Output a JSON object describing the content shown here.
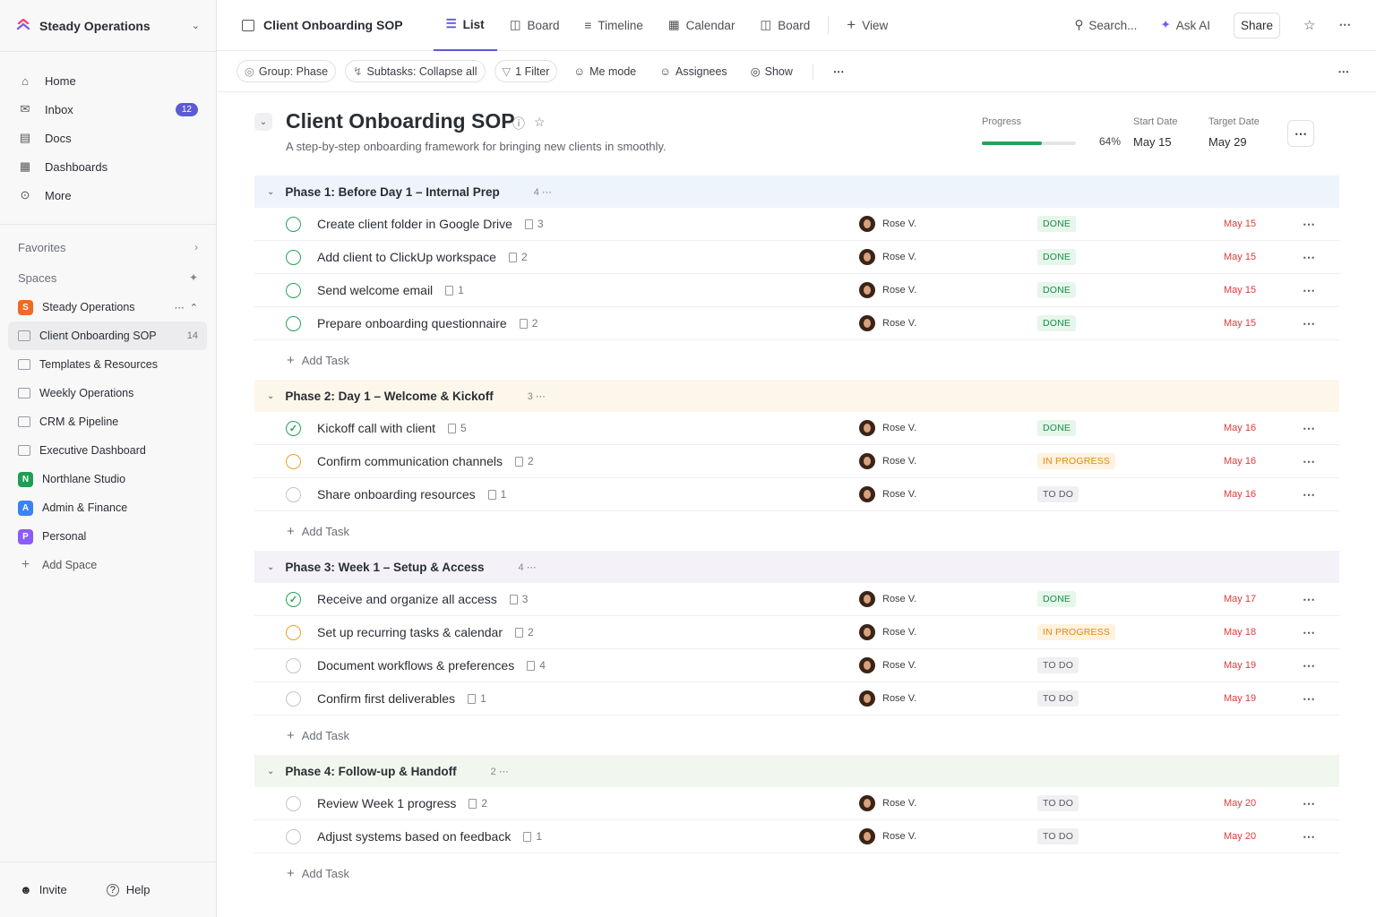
{
  "sidebar": {
    "workspace": "Steady Operations",
    "nav": [
      {
        "label": "Home",
        "icon": "home-icon"
      },
      {
        "label": "Inbox",
        "icon": "inbox-icon",
        "badge": "12"
      },
      {
        "label": "Docs",
        "icon": "docs-icon"
      },
      {
        "label": "Dashboards",
        "icon": "dashboards-icon"
      },
      {
        "label": "More",
        "icon": "more-icon"
      }
    ],
    "favorites": "Favorites",
    "spaces": "Spaces",
    "space_items": [
      {
        "label": "Steady Operations",
        "avatar": "S",
        "color": "#f06a25"
      },
      {
        "label": "Client Onboarding SOP",
        "count": "14",
        "folder": true,
        "active": true
      },
      {
        "label": "Templates & Resources",
        "folder": true
      },
      {
        "label": "Weekly Operations",
        "folder": true
      },
      {
        "label": "CRM & Pipeline",
        "folder": true
      },
      {
        "label": "Executive Dashboard",
        "folder": true
      },
      {
        "label": "Northlane Studio",
        "avatar": "N",
        "color": "#1f9d55"
      },
      {
        "label": "Admin & Finance",
        "avatar": "A",
        "color": "#3b82f6"
      },
      {
        "label": "Personal",
        "avatar": "P",
        "color": "#8b5cf6"
      }
    ],
    "add_space": "Add Space",
    "invite": "Invite",
    "help": "Help"
  },
  "header": {
    "doc_title": "Client Onboarding SOP",
    "tabs": [
      "List",
      "Board",
      "Timeline",
      "Calendar",
      "Board"
    ],
    "view": "View",
    "search": "Search...",
    "ask_ai": "Ask AI",
    "share": "Share"
  },
  "toolbar": {
    "group": "Group: Phase",
    "subtasks": "Subtasks: Collapse all",
    "filter": "1 Filter",
    "me_mode": "Me mode",
    "assignees": "Assignees",
    "show": "Show"
  },
  "page": {
    "title": "Client Onboarding SOP",
    "subtitle": "A step-by-step onboarding framework for bringing new clients in smoothly.",
    "progress_label": "Progress",
    "progress_value": 64,
    "progress_text": "64%",
    "start_label": "Start Date",
    "start": "May 15",
    "target_label": "Target Date",
    "target": "May 29"
  },
  "add_task": "Add Task",
  "phases": [
    {
      "name": "Phase 1: Before Day 1 – Internal Prep",
      "count": "4",
      "bg": "#eef4fb",
      "tasks": [
        {
          "name": "Create client folder in Google Drive",
          "sub": "3",
          "who": "Rose V.",
          "status": "DONE",
          "due": "May 15",
          "circle": "done"
        },
        {
          "name": "Add client to ClickUp workspace",
          "sub": "2",
          "who": "Rose V.",
          "status": "DONE",
          "due": "May 15",
          "circle": "done"
        },
        {
          "name": "Send welcome email",
          "sub": "1",
          "who": "Rose V.",
          "status": "DONE",
          "due": "May 15",
          "circle": "done"
        },
        {
          "name": "Prepare onboarding questionnaire",
          "sub": "2",
          "who": "Rose V.",
          "status": "DONE",
          "due": "May 15",
          "circle": "done"
        }
      ]
    },
    {
      "name": "Phase 2: Day 1 – Welcome & Kickoff",
      "count": "3",
      "bg": "#fdf6ea",
      "tasks": [
        {
          "name": "Kickoff call with client",
          "sub": "5",
          "who": "Rose V.",
          "status": "DONE",
          "due": "May 16",
          "circle": "check"
        },
        {
          "name": "Confirm communication channels",
          "sub": "2",
          "who": "Rose V.",
          "status": "IN PROGRESS",
          "due": "May 16",
          "circle": "prog"
        },
        {
          "name": "Share onboarding resources",
          "sub": "1",
          "who": "Rose V.",
          "status": "TO DO",
          "due": "May 16",
          "circle": "todo"
        }
      ]
    },
    {
      "name": "Phase 3: Week 1 – Setup & Access",
      "count": "4",
      "bg": "#f5f1f9",
      "tasks": [
        {
          "name": "Receive and organize all access",
          "sub": "3",
          "who": "Rose V.",
          "status": "DONE",
          "due": "May 17",
          "circle": "check"
        },
        {
          "name": "Set up recurring tasks & calendar",
          "sub": "2",
          "who": "Rose V.",
          "status": "IN PROGRESS",
          "due": "May 18",
          "circle": "prog"
        },
        {
          "name": "Document workflows & preferences",
          "sub": "4",
          "who": "Rose V.",
          "status": "TO DO",
          "due": "May 19",
          "circle": "todo"
        },
        {
          "name": "Confirm first deliverables",
          "sub": "1",
          "who": "Rose V.",
          "status": "TO DO",
          "due": "May 19",
          "circle": "todo"
        }
      ]
    },
    {
      "name": "Phase 4: Follow-up & Handoff",
      "count": "2",
      "bg": "#f1f6ee",
      "tasks": [
        {
          "name": "Review Week 1 progress",
          "sub": "2",
          "who": "Rose V.",
          "status": "TO DO",
          "due": "May 20",
          "circle": "todo"
        },
        {
          "name": "Adjust systems based on feedback",
          "sub": "1",
          "who": "Rose V.",
          "status": "TO DO",
          "due": "May 20",
          "circle": "todo"
        }
      ]
    }
  ]
}
